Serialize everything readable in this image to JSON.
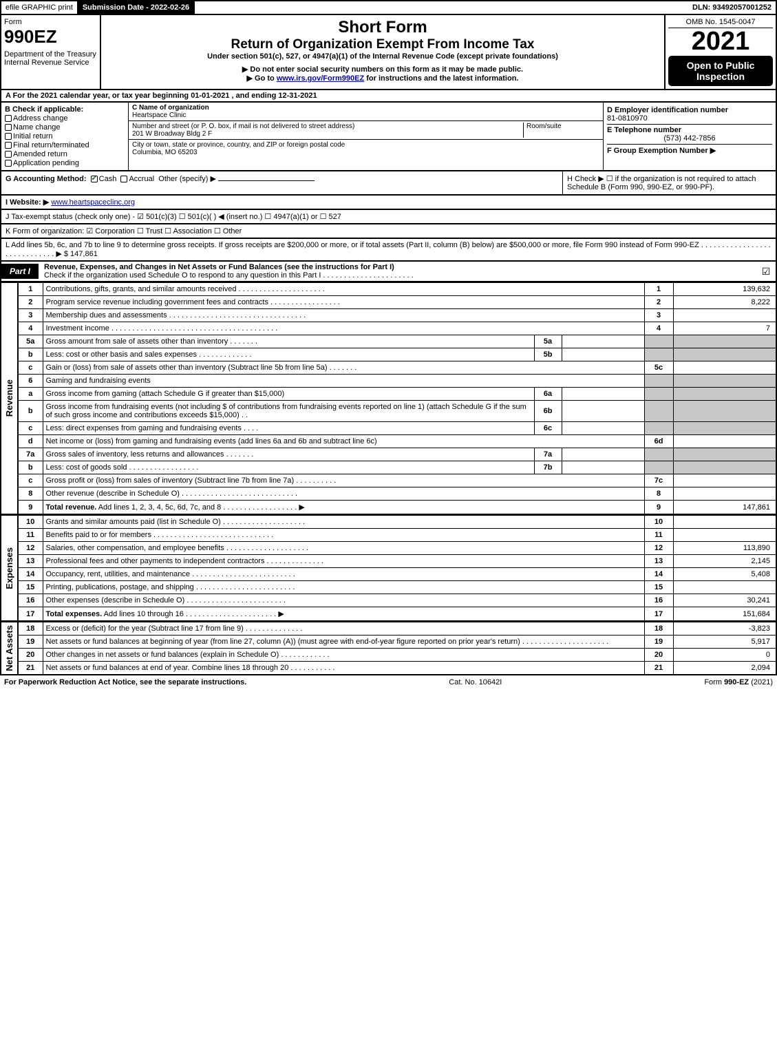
{
  "topbar": {
    "efile": "efile GRAPHIC print",
    "submission": "Submission Date - 2022-02-26",
    "dln": "DLN: 93492057001252"
  },
  "header": {
    "form_label": "Form",
    "form_number": "990EZ",
    "dept": "Department of the Treasury\nInternal Revenue Service",
    "title1": "Short Form",
    "title2": "Return of Organization Exempt From Income Tax",
    "subtitle": "Under section 501(c), 527, or 4947(a)(1) of the Internal Revenue Code (except private foundations)",
    "warn": "▶ Do not enter social security numbers on this form as it may be made public.",
    "goto": "▶ Go to www.irs.gov/Form990EZ for instructions and the latest information.",
    "goto_url": "www.irs.gov/Form990EZ",
    "omb": "OMB No. 1545-0047",
    "year": "2021",
    "open": "Open to Public Inspection"
  },
  "rowA": "A  For the 2021 calendar year, or tax year beginning 01-01-2021 , and ending 12-31-2021",
  "boxB": {
    "label": "B  Check if applicable:",
    "items": [
      "Address change",
      "Name change",
      "Initial return",
      "Final return/terminated",
      "Amended return",
      "Application pending"
    ]
  },
  "boxC": {
    "name_label": "C Name of organization",
    "name": "Heartspace Clinic",
    "addr_label": "Number and street (or P. O. box, if mail is not delivered to street address)",
    "room_label": "Room/suite",
    "addr": "201 W Broadway Bldg 2 F",
    "city_label": "City or town, state or province, country, and ZIP or foreign postal code",
    "city": "Columbia, MO  65203"
  },
  "boxD": {
    "d_label": "D Employer identification number",
    "ein": "81-0810970",
    "e_label": "E Telephone number",
    "phone": "(573) 442-7856",
    "f_label": "F Group Exemption Number  ▶"
  },
  "rowG": {
    "label": "G Accounting Method:",
    "cash": "Cash",
    "accrual": "Accrual",
    "other": "Other (specify) ▶",
    "h": "H  Check ▶  ☐  if the organization is not required to attach Schedule B (Form 990, 990-EZ, or 990-PF)."
  },
  "rowI": {
    "label": "I Website: ▶",
    "url": "www.heartspaceclinc.org",
    "j": "J Tax-exempt status (check only one) -  ☑ 501(c)(3)  ☐ 501(c)(   ) ◀ (insert no.)  ☐ 4947(a)(1) or  ☐ 527"
  },
  "rowK": "K Form of organization:   ☑ Corporation   ☐ Trust   ☐ Association   ☐ Other",
  "rowL": {
    "text": "L Add lines 5b, 6c, and 7b to line 9 to determine gross receipts. If gross receipts are $200,000 or more, or if total assets (Part II, column (B) below) are $500,000 or more, file Form 990 instead of Form 990-EZ . . . . . . . . . . . . . . . . . . . . . . . . . . . . . ▶ $",
    "amount": "147,861"
  },
  "part1": {
    "tag": "Part I",
    "title": "Revenue, Expenses, and Changes in Net Assets or Fund Balances (see the instructions for Part I)",
    "sub": "Check if the organization used Schedule O to respond to any question in this Part I . . . . . . . . . . . . . . . . . . . . . ."
  },
  "sections": {
    "revenue": "Revenue",
    "expenses": "Expenses",
    "netassets": "Net Assets"
  },
  "lines": [
    {
      "n": "1",
      "d": "Contributions, gifts, grants, and similar amounts received . . . . . . . . . . . . . . . . . . . . .",
      "r": "1",
      "a": "139,632"
    },
    {
      "n": "2",
      "d": "Program service revenue including government fees and contracts . . . . . . . . . . . . . . . . .",
      "r": "2",
      "a": "8,222"
    },
    {
      "n": "3",
      "d": "Membership dues and assessments . . . . . . . . . . . . . . . . . . . . . . . . . . . . . . . . .",
      "r": "3",
      "a": ""
    },
    {
      "n": "4",
      "d": "Investment income . . . . . . . . . . . . . . . . . . . . . . . . . . . . . . . . . . . . . . . .",
      "r": "4",
      "a": "7"
    },
    {
      "n": "5a",
      "d": "Gross amount from sale of assets other than inventory . . . . . . .",
      "mid_n": "5a",
      "mid_v": "",
      "grey": true
    },
    {
      "n": "b",
      "d": "Less: cost or other basis and sales expenses . . . . . . . . . . . . .",
      "mid_n": "5b",
      "mid_v": "",
      "grey": true
    },
    {
      "n": "c",
      "d": "Gain or (loss) from sale of assets other than inventory (Subtract line 5b from line 5a) . . . . . . .",
      "r": "5c",
      "a": ""
    },
    {
      "n": "6",
      "d": "Gaming and fundraising events",
      "grey": true,
      "nomid": true
    },
    {
      "n": "a",
      "d": "Gross income from gaming (attach Schedule G if greater than $15,000)",
      "mid_n": "6a",
      "mid_v": "",
      "grey": true
    },
    {
      "n": "b",
      "d": "Gross income from fundraising events (not including $                    of contributions from fundraising events reported on line 1) (attach Schedule G if the sum of such gross income and contributions exceeds $15,000)   . .",
      "mid_n": "6b",
      "mid_v": "",
      "grey": true
    },
    {
      "n": "c",
      "d": "Less: direct expenses from gaming and fundraising events   . . . .",
      "mid_n": "6c",
      "mid_v": "",
      "grey": true
    },
    {
      "n": "d",
      "d": "Net income or (loss) from gaming and fundraising events (add lines 6a and 6b and subtract line 6c)",
      "r": "6d",
      "a": ""
    },
    {
      "n": "7a",
      "d": "Gross sales of inventory, less returns and allowances . . . . . . .",
      "mid_n": "7a",
      "mid_v": "",
      "grey": true
    },
    {
      "n": "b",
      "d": "Less: cost of goods sold   . . . . . . . . . . . . . . . . .",
      "mid_n": "7b",
      "mid_v": "",
      "grey": true
    },
    {
      "n": "c",
      "d": "Gross profit or (loss) from sales of inventory (Subtract line 7b from line 7a) . . . . . . . . . .",
      "r": "7c",
      "a": ""
    },
    {
      "n": "8",
      "d": "Other revenue (describe in Schedule O) . . . . . . . . . . . . . . . . . . . . . . . . . . . .",
      "r": "8",
      "a": ""
    },
    {
      "n": "9",
      "d": "Total revenue. Add lines 1, 2, 3, 4, 5c, 6d, 7c, and 8  . . . . . . . . . . . . . . . . . .   ▶",
      "r": "9",
      "a": "147,861",
      "bold": true
    }
  ],
  "exp_lines": [
    {
      "n": "10",
      "d": "Grants and similar amounts paid (list in Schedule O) . . . . . . . . . . . . . . . . . . . .",
      "r": "10",
      "a": ""
    },
    {
      "n": "11",
      "d": "Benefits paid to or for members   . . . . . . . . . . . . . . . . . . . . . . . . . . . . .",
      "r": "11",
      "a": ""
    },
    {
      "n": "12",
      "d": "Salaries, other compensation, and employee benefits . . . . . . . . . . . . . . . . . . . .",
      "r": "12",
      "a": "113,890"
    },
    {
      "n": "13",
      "d": "Professional fees and other payments to independent contractors . . . . . . . . . . . . . .",
      "r": "13",
      "a": "2,145"
    },
    {
      "n": "14",
      "d": "Occupancy, rent, utilities, and maintenance . . . . . . . . . . . . . . . . . . . . . . . . .",
      "r": "14",
      "a": "5,408"
    },
    {
      "n": "15",
      "d": "Printing, publications, postage, and shipping . . . . . . . . . . . . . . . . . . . . . . . .",
      "r": "15",
      "a": ""
    },
    {
      "n": "16",
      "d": "Other expenses (describe in Schedule O)   . . . . . . . . . . . . . . . . . . . . . . . .",
      "r": "16",
      "a": "30,241"
    },
    {
      "n": "17",
      "d": "Total expenses. Add lines 10 through 16   . . . . . . . . . . . . . . . . . . . . . .   ▶",
      "r": "17",
      "a": "151,684",
      "bold": true
    }
  ],
  "na_lines": [
    {
      "n": "18",
      "d": "Excess or (deficit) for the year (Subtract line 17 from line 9)   . . . . . . . . . . . . . .",
      "r": "18",
      "a": "-3,823"
    },
    {
      "n": "19",
      "d": "Net assets or fund balances at beginning of year (from line 27, column (A)) (must agree with end-of-year figure reported on prior year's return) . . . . . . . . . . . . . . . . . . . . .",
      "r": "19",
      "a": "5,917"
    },
    {
      "n": "20",
      "d": "Other changes in net assets or fund balances (explain in Schedule O) . . . . . . . . . . . .",
      "r": "20",
      "a": "0"
    },
    {
      "n": "21",
      "d": "Net assets or fund balances at end of year. Combine lines 18 through 20 . . . . . . . . . . .",
      "r": "21",
      "a": "2,094"
    }
  ],
  "footer": {
    "left": "For Paperwork Reduction Act Notice, see the separate instructions.",
    "mid": "Cat. No. 10642I",
    "right_pre": "Form ",
    "right_bold": "990-EZ",
    "right_post": " (2021)"
  }
}
